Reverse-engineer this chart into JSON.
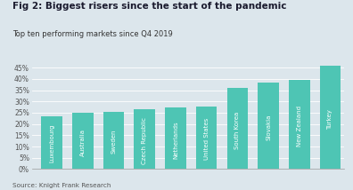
{
  "title": "Fig 2: Biggest risers since the start of the pandemic",
  "subtitle": "Top ten performing markets since Q4 2019",
  "source": "Source: Knight Frank Research",
  "categories": [
    "Luxembourg",
    "Australia",
    "Sweden",
    "Czech Republic",
    "Netherlands",
    "United States",
    "South Korea",
    "Slovakia",
    "New Zealand",
    "Turkey"
  ],
  "values": [
    23.5,
    24.8,
    25.2,
    26.5,
    27.2,
    27.8,
    36.0,
    38.5,
    39.5,
    46.0
  ],
  "bar_color": "#4ec5b4",
  "background_color": "#dce6ec",
  "title_color": "#1a1a2e",
  "subtitle_color": "#333333",
  "source_color": "#555555",
  "yticks": [
    0,
    5,
    10,
    15,
    20,
    25,
    30,
    35,
    40,
    45
  ],
  "ylim": [
    0,
    48
  ],
  "title_fontsize": 7.5,
  "subtitle_fontsize": 6.0,
  "source_fontsize": 5.2,
  "tick_fontsize": 5.5,
  "label_fontsize": 5.0
}
